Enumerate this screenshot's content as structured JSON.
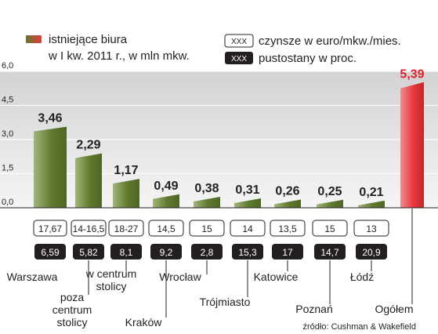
{
  "legend": {
    "bars_line1": "istniejące biura",
    "bars_line2": "w I kw. 2011 r., w mln mkw.",
    "rent_swatch": "XXX",
    "rent_label": "czynsze w euro/mkw./mies.",
    "vacancy_swatch": "XXX",
    "vacancy_label": "pustostany w proc."
  },
  "source": "źródło: Cushman & Wakefield",
  "colors": {
    "bar_main": "#5f7a2e",
    "bar_light": "#a3b57c",
    "bar_total": "#e63a3f",
    "bar_total_light": "#f08d8f",
    "vacancy_box": "#231f20",
    "plot_bg_top": "#d3d3d3",
    "plot_bg_bottom": "#f5f5f5"
  },
  "chart_data": {
    "type": "bar",
    "ylim": [
      0,
      6.0
    ],
    "yticks": [
      "0,0",
      "1,5",
      "3,0",
      "4,5",
      "6,0"
    ],
    "categories": [
      "Warszawa",
      "poza centrum stolicy",
      "w centrum stolicy",
      "Kraków",
      "Wrocław",
      "Trójmiasto",
      "Katowice",
      "Poznań",
      "Łódź",
      "Ogółem"
    ],
    "category_lines": [
      [
        "Warszawa"
      ],
      [
        "poza",
        "centrum",
        "stolicy"
      ],
      [
        "w centrum",
        "stolicy"
      ],
      [
        "Kraków"
      ],
      [
        "Wrocław"
      ],
      [
        "Trójmiasto"
      ],
      [
        "Katowice"
      ],
      [
        "Poznań"
      ],
      [
        "Łódź"
      ],
      [
        "Ogółem"
      ]
    ],
    "values": [
      3.46,
      2.29,
      1.17,
      0.49,
      0.38,
      0.31,
      0.26,
      0.25,
      0.21,
      5.39
    ],
    "value_labels": [
      "3,46",
      "2,29",
      "1,17",
      "0,49",
      "0,38",
      "0,31",
      "0,26",
      "0,25",
      "0,21",
      "5,39"
    ],
    "rents": [
      "17,67",
      "14-16,5",
      "18-27",
      "14,5",
      "15",
      "14",
      "13,5",
      "15",
      "13"
    ],
    "vacancy": [
      "6,59",
      "5,82",
      "8,1",
      "9,2",
      "2,8",
      "15,3",
      "17",
      "14,7",
      "20,9"
    ]
  }
}
